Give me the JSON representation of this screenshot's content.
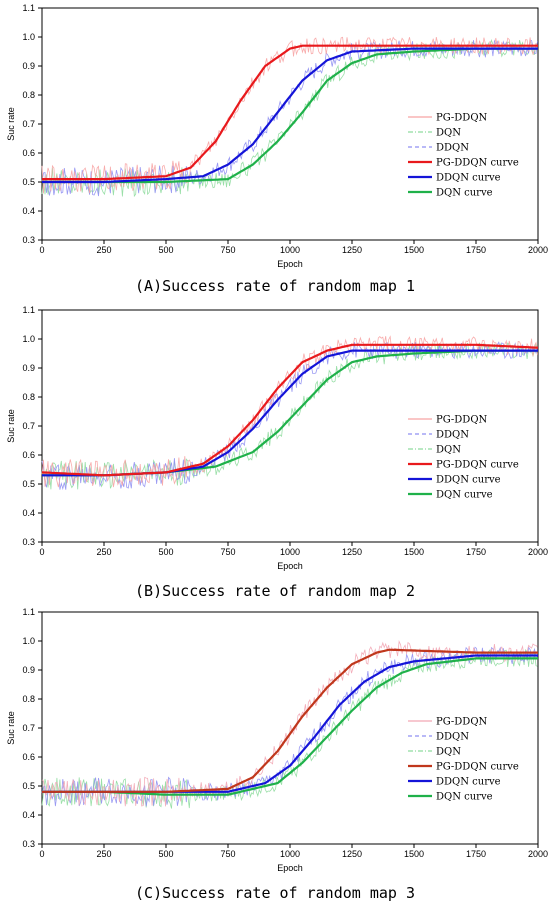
{
  "chart_data": [
    {
      "type": "line",
      "caption": "(A)Success rate of random map 1",
      "xlabel": "Epoch",
      "ylabel": "Suc rate",
      "xlim": [
        0,
        2000
      ],
      "ylim": [
        0.3,
        1.1
      ],
      "xticks": [
        0,
        250,
        500,
        750,
        1000,
        1250,
        1500,
        1750,
        2000
      ],
      "yticks": [
        0.3,
        0.4,
        0.5,
        0.6,
        0.7,
        0.8,
        0.9,
        1.0,
        1.1
      ],
      "legend_position": "right",
      "legend": [
        "PG-DDQN",
        "DQN",
        "DDQN",
        "PG-DDQN curve",
        "DDQN curve",
        "DQN curve"
      ],
      "series": [
        {
          "name": "PG-DDQN curve",
          "color": "#e8191c",
          "raw_color": "#f7a3a3",
          "x": [
            0,
            250,
            500,
            600,
            700,
            800,
            900,
            1000,
            1050,
            1250,
            1500,
            1750,
            2000
          ],
          "values": [
            0.51,
            0.51,
            0.52,
            0.55,
            0.64,
            0.78,
            0.9,
            0.96,
            0.97,
            0.97,
            0.97,
            0.97,
            0.97
          ]
        },
        {
          "name": "DDQN curve",
          "color": "#1414d8",
          "raw_color": "#8f8ff2",
          "x": [
            0,
            250,
            500,
            650,
            750,
            850,
            950,
            1050,
            1150,
            1250,
            1500,
            1750,
            2000
          ],
          "values": [
            0.5,
            0.5,
            0.51,
            0.52,
            0.56,
            0.63,
            0.74,
            0.85,
            0.92,
            0.95,
            0.96,
            0.96,
            0.96
          ]
        },
        {
          "name": "DQN curve",
          "color": "#1fb14a",
          "raw_color": "#8fdc9f",
          "x": [
            0,
            250,
            500,
            750,
            850,
            950,
            1050,
            1150,
            1250,
            1350,
            1500,
            1750,
            2000
          ],
          "values": [
            0.5,
            0.5,
            0.5,
            0.51,
            0.56,
            0.64,
            0.74,
            0.85,
            0.91,
            0.94,
            0.95,
            0.96,
            0.96
          ]
        }
      ]
    },
    {
      "type": "line",
      "caption": "(B)Success rate of random map 2",
      "xlabel": "Epoch",
      "ylabel": "Suc rate",
      "xlim": [
        0,
        2000
      ],
      "ylim": [
        0.3,
        1.1
      ],
      "xticks": [
        0,
        250,
        500,
        750,
        1000,
        1250,
        1500,
        1750,
        2000
      ],
      "yticks": [
        0.3,
        0.4,
        0.5,
        0.6,
        0.7,
        0.8,
        0.9,
        1.0,
        1.1
      ],
      "legend_position": "right",
      "legend": [
        "PG-DDQN",
        "DDQN",
        "DQN",
        "PG-DDQN curve",
        "DDQN curve",
        "DQN curve"
      ],
      "series": [
        {
          "name": "PG-DDQN curve",
          "color": "#e8191c",
          "raw_color": "#f7a3a3",
          "x": [
            0,
            250,
            500,
            650,
            750,
            850,
            950,
            1050,
            1150,
            1250,
            1500,
            1750,
            2000
          ],
          "values": [
            0.54,
            0.53,
            0.54,
            0.57,
            0.63,
            0.72,
            0.83,
            0.92,
            0.96,
            0.98,
            0.98,
            0.98,
            0.97
          ]
        },
        {
          "name": "DDQN curve",
          "color": "#1414d8",
          "raw_color": "#8f8ff2",
          "x": [
            0,
            250,
            500,
            650,
            750,
            850,
            950,
            1050,
            1150,
            1250,
            1500,
            1750,
            2000
          ],
          "values": [
            0.53,
            0.53,
            0.54,
            0.56,
            0.61,
            0.69,
            0.79,
            0.88,
            0.94,
            0.96,
            0.96,
            0.96,
            0.96
          ]
        },
        {
          "name": "DQN curve",
          "color": "#1fb14a",
          "raw_color": "#8fdc9f",
          "x": [
            0,
            250,
            500,
            700,
            850,
            950,
            1050,
            1150,
            1250,
            1350,
            1500,
            1750,
            2000
          ],
          "values": [
            0.53,
            0.53,
            0.54,
            0.56,
            0.61,
            0.68,
            0.77,
            0.86,
            0.92,
            0.94,
            0.95,
            0.96,
            0.96
          ]
        }
      ]
    },
    {
      "type": "line",
      "caption": "(C)Success rate of random map 3",
      "xlabel": "Epoch",
      "ylabel": "Suc rate",
      "xlim": [
        0,
        2000
      ],
      "ylim": [
        0.3,
        1.1
      ],
      "xticks": [
        0,
        250,
        500,
        750,
        1000,
        1250,
        1500,
        1750,
        2000
      ],
      "yticks": [
        0.3,
        0.4,
        0.5,
        0.6,
        0.7,
        0.8,
        0.9,
        1.0,
        1.1
      ],
      "legend_position": "right",
      "legend": [
        "PG-DDQN",
        "DDQN",
        "DQN",
        "PG-DDQN curve",
        "DDQN curve",
        "DQN curve"
      ],
      "series": [
        {
          "name": "PG-DDQN curve",
          "color": "#c0371c",
          "raw_color": "#f2a6b4",
          "x": [
            0,
            250,
            500,
            750,
            850,
            950,
            1050,
            1150,
            1250,
            1350,
            1400,
            1750,
            2000
          ],
          "values": [
            0.48,
            0.48,
            0.48,
            0.49,
            0.53,
            0.62,
            0.74,
            0.84,
            0.92,
            0.96,
            0.97,
            0.96,
            0.96
          ]
        },
        {
          "name": "DDQN curve",
          "color": "#1414d8",
          "raw_color": "#8f8ff2",
          "x": [
            0,
            250,
            500,
            750,
            900,
            1000,
            1100,
            1200,
            1300,
            1400,
            1500,
            1750,
            2000
          ],
          "values": [
            0.48,
            0.48,
            0.48,
            0.48,
            0.51,
            0.57,
            0.67,
            0.78,
            0.86,
            0.91,
            0.93,
            0.95,
            0.95
          ]
        },
        {
          "name": "DQN curve",
          "color": "#1fb14a",
          "raw_color": "#8fdc9f",
          "x": [
            0,
            250,
            500,
            750,
            950,
            1050,
            1150,
            1250,
            1350,
            1450,
            1550,
            1750,
            2000
          ],
          "values": [
            0.48,
            0.48,
            0.47,
            0.47,
            0.51,
            0.58,
            0.67,
            0.76,
            0.84,
            0.89,
            0.92,
            0.94,
            0.94
          ]
        }
      ]
    }
  ]
}
